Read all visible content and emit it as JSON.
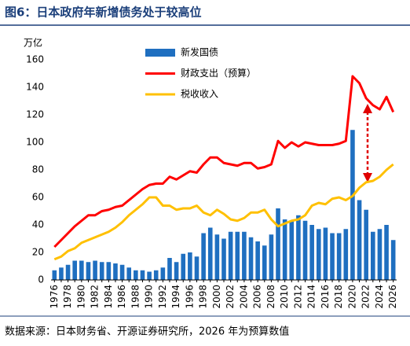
{
  "chart_data": {
    "type": "bar_line",
    "title": "图6：日本政府年新增债务处于较高位",
    "y_label": "万亿",
    "source": "数据来源：日本财务省、开源证券研究所，2026 年为预算数值",
    "categories": [
      "1976",
      null,
      "1978",
      null,
      "1980",
      null,
      "1982",
      null,
      "1984",
      null,
      "1986",
      null,
      "1988",
      null,
      "1990",
      null,
      "1992",
      null,
      "1994",
      null,
      "1996",
      null,
      "1998",
      null,
      "2000",
      null,
      "2002",
      null,
      "2004",
      null,
      "2006",
      null,
      "2008",
      null,
      "2010",
      null,
      "2012",
      null,
      "2014",
      null,
      "2016",
      null,
      "2018",
      null,
      "2020",
      null,
      "2022",
      null,
      "2024",
      null,
      "2026"
    ],
    "series": [
      {
        "name": "新发国债",
        "kind": "bar",
        "color": "#1f6fc0",
        "values": [
          7,
          9,
          11,
          14,
          14,
          13,
          14,
          13,
          13,
          12,
          11,
          9,
          7,
          7,
          6,
          7,
          9,
          16,
          13,
          19,
          20,
          17,
          34,
          38,
          33,
          30,
          35,
          35,
          35,
          31,
          28,
          25,
          33,
          52,
          44,
          43,
          47,
          43,
          40,
          37,
          38,
          34,
          34,
          37,
          109,
          58,
          51,
          35,
          37,
          40,
          29
        ]
      },
      {
        "name": "财政支出（预算）",
        "kind": "line",
        "color": "#ff0000",
        "values": [
          24,
          29,
          34,
          39,
          43,
          47,
          47,
          50,
          51,
          53,
          54,
          58,
          62,
          66,
          69,
          70,
          70,
          75,
          73,
          76,
          79,
          78,
          84,
          89,
          89,
          85,
          84,
          83,
          85,
          85,
          81,
          82,
          84,
          101,
          96,
          100,
          97,
          100,
          99,
          98,
          98,
          98,
          99,
          101,
          148,
          143,
          132,
          127,
          124,
          133,
          122
        ]
      },
      {
        "name": "税收收入",
        "kind": "line",
        "color": "#ffc000",
        "values": [
          15,
          17,
          21,
          23,
          27,
          29,
          31,
          33,
          35,
          38,
          42,
          47,
          51,
          55,
          60,
          60,
          54,
          54,
          51,
          52,
          52,
          54,
          49,
          47,
          51,
          48,
          44,
          43,
          45,
          49,
          49,
          51,
          44,
          39,
          41,
          43,
          44,
          47,
          54,
          56,
          55,
          59,
          60,
          58,
          61,
          67,
          71,
          72,
          75,
          80,
          84
        ]
      }
    ],
    "ylim": [
      0,
      160
    ],
    "yticks": [
      0,
      20,
      40,
      60,
      80,
      100,
      120,
      140,
      160
    ],
    "grid": false
  }
}
